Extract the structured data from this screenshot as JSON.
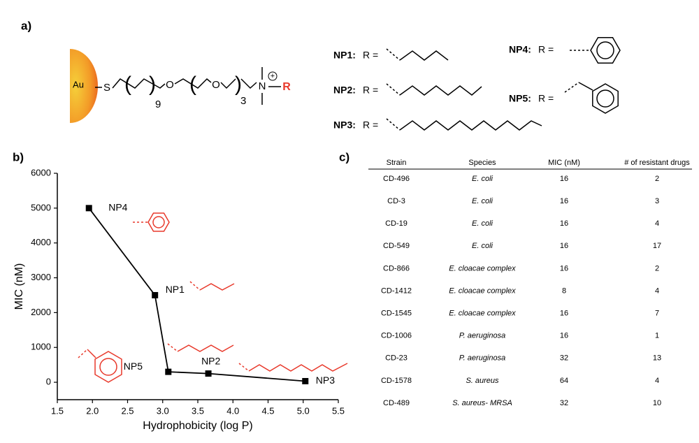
{
  "panel_a": {
    "label": "a)",
    "au": "Au",
    "atoms": [
      "S",
      "O",
      "O",
      "N",
      "R"
    ],
    "subscripts": [
      "9",
      "3"
    ],
    "charge": "+",
    "substituents": [
      {
        "name": "NP1:",
        "eq": "R ="
      },
      {
        "name": "NP2:",
        "eq": "R ="
      },
      {
        "name": "NP3:",
        "eq": "R ="
      },
      {
        "name": "NP4:",
        "eq": "R ="
      },
      {
        "name": "NP5:",
        "eq": "R ="
      }
    ]
  },
  "panel_b": {
    "label": "b)"
  },
  "chart_data": {
    "type": "line",
    "xlabel": "Hydrophobicity (log P)",
    "ylabel": "MIC (nM)",
    "series": [
      {
        "name": "MIC",
        "color": "#000000",
        "x": [
          1.95,
          2.89,
          3.08,
          3.65,
          5.03
        ],
        "values": [
          5000,
          2500,
          300,
          250,
          32
        ],
        "point_labels": [
          "NP4",
          "NP1",
          "NP5",
          "NP2",
          "NP3"
        ]
      }
    ],
    "xlim": [
      1.5,
      5.5
    ],
    "xticks": [
      1.5,
      {
        "value": 2,
        "label": "2.0"
      },
      2.5,
      {
        "value": 3,
        "label": "3.0"
      },
      3.5,
      {
        "value": 4,
        "label": "4.0"
      },
      4.5,
      {
        "value": 5,
        "label": "5.0"
      },
      5.5
    ],
    "ylim": [
      -500,
      6000
    ],
    "yticks": [
      0,
      1000,
      2000,
      3000,
      4000,
      5000,
      6000
    ],
    "grid": false
  },
  "panel_c": {
    "label": "c)"
  },
  "table": {
    "header": [
      "Strain",
      "Species",
      "MIC (nM)",
      "# of resistant drugs"
    ],
    "rows": [
      [
        "CD-496",
        "E. coli",
        "16",
        "2"
      ],
      [
        "CD-3",
        "E. coli",
        "16",
        "3"
      ],
      [
        "CD-19",
        "E. coli",
        "16",
        "4"
      ],
      [
        "CD-549",
        "E. coli",
        "16",
        "17"
      ],
      [
        "CD-866",
        "E. cloacae complex",
        "16",
        "2"
      ],
      [
        "CD-1412",
        "E. cloacae complex",
        "8",
        "4"
      ],
      [
        "CD-1545",
        "E. cloacae complex",
        "16",
        "7"
      ],
      [
        "CD-1006",
        "P. aeruginosa",
        "16",
        "1"
      ],
      [
        "CD-23",
        "P. aeruginosa",
        "32",
        "13"
      ],
      [
        "CD-1578",
        "S. aureus",
        "64",
        "4"
      ],
      [
        "CD-489",
        "S. aureus- MRSA",
        "32",
        "10"
      ]
    ]
  }
}
